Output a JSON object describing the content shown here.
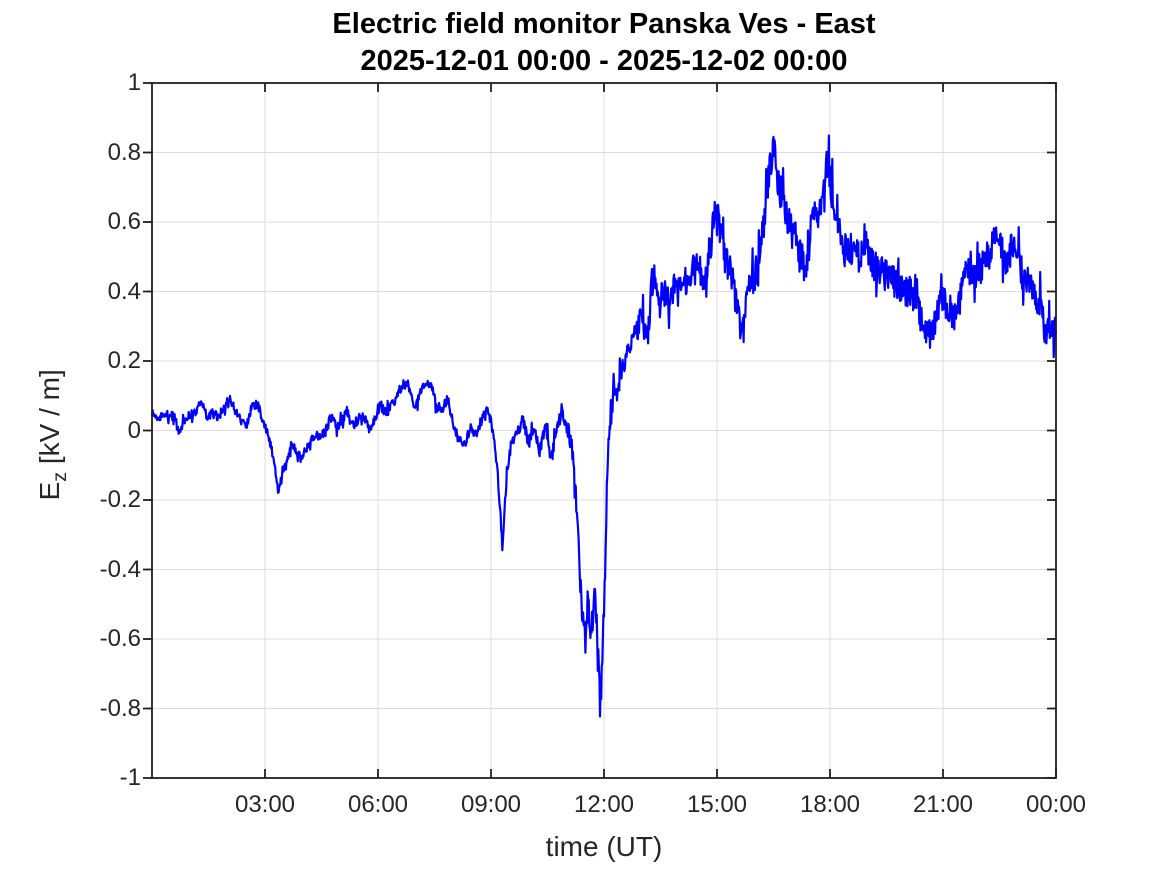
{
  "figure": {
    "title_line1": "Electric field monitor Panska Ves - East",
    "title_line2": "2025-12-01 00:00 - 2025-12-02 00:00",
    "xlabel": "time (UT)",
    "ylabel_base": "E",
    "ylabel_sub": "z",
    "ylabel_units": " [kV / m]"
  },
  "colors": {
    "line": "#0000FF",
    "grid": "#dcdcdc",
    "axis": "#1f1f1f",
    "tick_text": "#262626",
    "title_text": "#000000",
    "background": "#ffffff"
  },
  "chart_data": {
    "type": "line",
    "title": "Electric field monitor Panska Ves - East",
    "subtitle": "2025-12-01 00:00 - 2025-12-02 00:00",
    "xlabel": "time (UT)",
    "ylabel": "E_z [kV / m]",
    "x_unit": "hours UT on 2025-12-01",
    "xlim": [
      0,
      24
    ],
    "ylim": [
      -1,
      1
    ],
    "grid": true,
    "legend": "none",
    "line_color": "#0000FF",
    "line_width": 2.2,
    "xticks": [
      {
        "t": 3,
        "label": "03:00"
      },
      {
        "t": 6,
        "label": "06:00"
      },
      {
        "t": 9,
        "label": "09:00"
      },
      {
        "t": 12,
        "label": "12:00"
      },
      {
        "t": 15,
        "label": "15:00"
      },
      {
        "t": 18,
        "label": "18:00"
      },
      {
        "t": 21,
        "label": "21:00"
      },
      {
        "t": 24,
        "label": "00:00"
      }
    ],
    "yticks": [
      {
        "v": 1,
        "label": "1"
      },
      {
        "v": 0.8,
        "label": "0.8"
      },
      {
        "v": 0.6,
        "label": "0.6"
      },
      {
        "v": 0.4,
        "label": "0.4"
      },
      {
        "v": 0.2,
        "label": "0.2"
      },
      {
        "v": 0,
        "label": "0"
      },
      {
        "v": -0.2,
        "label": "-0.2"
      },
      {
        "v": -0.4,
        "label": "-0.4"
      },
      {
        "v": -0.6,
        "label": "-0.6"
      },
      {
        "v": -0.8,
        "label": "-0.8"
      },
      {
        "v": -1,
        "label": "-1"
      }
    ],
    "series": [
      {
        "name": "Ez",
        "anchors": [
          [
            0.0,
            0.05
          ],
          [
            0.2,
            0.035
          ],
          [
            0.4,
            0.045
          ],
          [
            0.6,
            0.04
          ],
          [
            0.72,
            -0.01
          ],
          [
            0.85,
            0.03
          ],
          [
            1.0,
            0.045
          ],
          [
            1.15,
            0.05
          ],
          [
            1.3,
            0.09
          ],
          [
            1.45,
            0.04
          ],
          [
            1.6,
            0.05
          ],
          [
            1.75,
            0.04
          ],
          [
            1.9,
            0.06
          ],
          [
            2.05,
            0.095
          ],
          [
            2.2,
            0.06
          ],
          [
            2.35,
            0.03
          ],
          [
            2.5,
            0.01
          ],
          [
            2.65,
            0.07
          ],
          [
            2.8,
            0.075
          ],
          [
            2.95,
            0.03
          ],
          [
            3.1,
            -0.02
          ],
          [
            3.25,
            -0.09
          ],
          [
            3.35,
            -0.18
          ],
          [
            3.45,
            -0.12
          ],
          [
            3.6,
            -0.075
          ],
          [
            3.72,
            -0.035
          ],
          [
            3.85,
            -0.06
          ],
          [
            3.95,
            -0.08
          ],
          [
            4.1,
            -0.05
          ],
          [
            4.25,
            -0.02
          ],
          [
            4.4,
            -0.015
          ],
          [
            4.6,
            -0.005
          ],
          [
            4.75,
            0.04
          ],
          [
            4.9,
            0.01
          ],
          [
            5.05,
            0.03
          ],
          [
            5.17,
            0.06
          ],
          [
            5.3,
            0.01
          ],
          [
            5.45,
            0.03
          ],
          [
            5.6,
            0.05
          ],
          [
            5.75,
            0.005
          ],
          [
            5.9,
            0.03
          ],
          [
            6.05,
            0.075
          ],
          [
            6.2,
            0.05
          ],
          [
            6.35,
            0.07
          ],
          [
            6.5,
            0.1
          ],
          [
            6.65,
            0.13
          ],
          [
            6.8,
            0.135
          ],
          [
            6.95,
            0.06
          ],
          [
            7.1,
            0.1
          ],
          [
            7.25,
            0.13
          ],
          [
            7.4,
            0.135
          ],
          [
            7.55,
            0.07
          ],
          [
            7.7,
            0.06
          ],
          [
            7.85,
            0.09
          ],
          [
            8.0,
            0.02
          ],
          [
            8.15,
            -0.03
          ],
          [
            8.3,
            -0.045
          ],
          [
            8.45,
            0.01
          ],
          [
            8.6,
            -0.01
          ],
          [
            8.75,
            0.03
          ],
          [
            8.9,
            0.07
          ],
          [
            9.05,
            0.0
          ],
          [
            9.18,
            -0.12
          ],
          [
            9.3,
            -0.33
          ],
          [
            9.42,
            -0.12
          ],
          [
            9.55,
            -0.03
          ],
          [
            9.7,
            0.0
          ],
          [
            9.85,
            0.03
          ],
          [
            10.0,
            -0.04
          ],
          [
            10.15,
            0.01
          ],
          [
            10.3,
            -0.06
          ],
          [
            10.45,
            0.02
          ],
          [
            10.6,
            -0.09
          ],
          [
            10.75,
            0.02
          ],
          [
            10.9,
            0.045
          ],
          [
            11.05,
            0.0
          ],
          [
            11.2,
            -0.08
          ],
          [
            11.3,
            -0.3
          ],
          [
            11.42,
            -0.52
          ],
          [
            11.5,
            -0.6
          ],
          [
            11.58,
            -0.46
          ],
          [
            11.66,
            -0.6
          ],
          [
            11.74,
            -0.47
          ],
          [
            11.82,
            -0.56
          ],
          [
            11.9,
            -0.79
          ],
          [
            11.97,
            -0.62
          ],
          [
            12.03,
            -0.38
          ],
          [
            12.1,
            -0.1
          ],
          [
            12.18,
            0.05
          ],
          [
            12.28,
            0.1
          ],
          [
            12.4,
            0.14
          ],
          [
            12.55,
            0.2
          ],
          [
            12.7,
            0.24
          ],
          [
            12.85,
            0.28
          ],
          [
            13.0,
            0.31
          ],
          [
            13.15,
            0.27
          ],
          [
            13.3,
            0.45
          ],
          [
            13.45,
            0.36
          ],
          [
            13.6,
            0.4
          ],
          [
            13.75,
            0.38
          ],
          [
            13.9,
            0.42
          ],
          [
            14.05,
            0.39
          ],
          [
            14.2,
            0.44
          ],
          [
            14.35,
            0.46
          ],
          [
            14.5,
            0.48
          ],
          [
            14.65,
            0.44
          ],
          [
            14.8,
            0.52
          ],
          [
            14.95,
            0.62
          ],
          [
            15.05,
            0.6
          ],
          [
            15.2,
            0.5
          ],
          [
            15.35,
            0.45
          ],
          [
            15.5,
            0.38
          ],
          [
            15.65,
            0.26
          ],
          [
            15.8,
            0.38
          ],
          [
            15.95,
            0.43
          ],
          [
            16.1,
            0.47
          ],
          [
            16.25,
            0.6
          ],
          [
            16.4,
            0.75
          ],
          [
            16.5,
            0.84
          ],
          [
            16.6,
            0.72
          ],
          [
            16.75,
            0.66
          ],
          [
            16.9,
            0.6
          ],
          [
            17.05,
            0.56
          ],
          [
            17.2,
            0.5
          ],
          [
            17.35,
            0.48
          ],
          [
            17.5,
            0.58
          ],
          [
            17.65,
            0.62
          ],
          [
            17.8,
            0.7
          ],
          [
            17.92,
            0.78
          ],
          [
            18.05,
            0.68
          ],
          [
            18.2,
            0.62
          ],
          [
            18.35,
            0.5
          ],
          [
            18.5,
            0.54
          ],
          [
            18.65,
            0.52
          ],
          [
            18.8,
            0.5
          ],
          [
            18.95,
            0.56
          ],
          [
            19.1,
            0.48
          ],
          [
            19.25,
            0.47
          ],
          [
            19.4,
            0.45
          ],
          [
            19.55,
            0.44
          ],
          [
            19.7,
            0.43
          ],
          [
            19.85,
            0.41
          ],
          [
            20.0,
            0.4
          ],
          [
            20.15,
            0.4
          ],
          [
            20.3,
            0.36
          ],
          [
            20.45,
            0.31
          ],
          [
            20.6,
            0.28
          ],
          [
            20.72,
            0.27
          ],
          [
            20.85,
            0.35
          ],
          [
            21.0,
            0.38
          ],
          [
            21.15,
            0.35
          ],
          [
            21.3,
            0.33
          ],
          [
            21.45,
            0.38
          ],
          [
            21.6,
            0.45
          ],
          [
            21.75,
            0.47
          ],
          [
            21.9,
            0.45
          ],
          [
            22.05,
            0.48
          ],
          [
            22.2,
            0.5
          ],
          [
            22.35,
            0.55
          ],
          [
            22.5,
            0.57
          ],
          [
            22.65,
            0.48
          ],
          [
            22.8,
            0.52
          ],
          [
            22.95,
            0.53
          ],
          [
            23.1,
            0.45
          ],
          [
            23.25,
            0.44
          ],
          [
            23.4,
            0.42
          ],
          [
            23.5,
            0.36
          ],
          [
            23.6,
            0.38
          ],
          [
            23.72,
            0.26
          ],
          [
            23.85,
            0.31
          ],
          [
            23.95,
            0.28
          ],
          [
            24.0,
            0.3
          ]
        ],
        "noise_envelope": [
          [
            0,
            0.013
          ],
          [
            3,
            0.013
          ],
          [
            6,
            0.016
          ],
          [
            9,
            0.015
          ],
          [
            9.6,
            0.02
          ],
          [
            11,
            0.02
          ],
          [
            11.35,
            0.05
          ],
          [
            12.1,
            0.05
          ],
          [
            12.5,
            0.03
          ],
          [
            13,
            0.05
          ],
          [
            14,
            0.05
          ],
          [
            15,
            0.05
          ],
          [
            16,
            0.055
          ],
          [
            17,
            0.055
          ],
          [
            18,
            0.06
          ],
          [
            19,
            0.05
          ],
          [
            20,
            0.045
          ],
          [
            21,
            0.045
          ],
          [
            22,
            0.05
          ],
          [
            23,
            0.05
          ],
          [
            23.6,
            0.045
          ],
          [
            24,
            0.04
          ]
        ]
      }
    ]
  }
}
